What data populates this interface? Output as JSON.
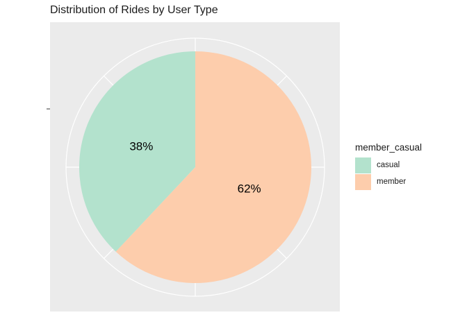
{
  "chart_data": {
    "type": "pie",
    "title": "Distribution of Rides by User Type",
    "legend_title": "member_casual",
    "legend_position": "right",
    "grid": true,
    "slices": [
      {
        "label": "casual",
        "value": 38,
        "display": "38%",
        "color": "#B3E2CD"
      },
      {
        "label": "member",
        "value": 62,
        "display": "62%",
        "color": "#FDCDAC"
      }
    ],
    "panel_background": "#EBEBEB",
    "grid_color": "#FFFFFF"
  }
}
